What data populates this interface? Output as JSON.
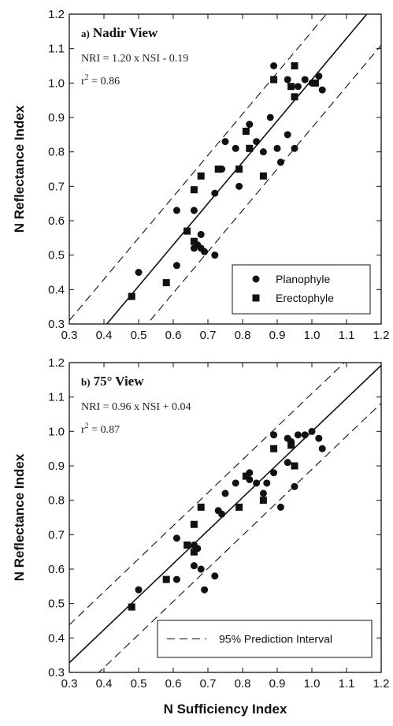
{
  "chart_data": [
    {
      "type": "scatter",
      "panel_label": "a)",
      "title": "Nadir View",
      "equation": "NRI = 1.20 x NSI - 0.19",
      "r2_label": "r",
      "r2_sup": "2",
      "r2_value": " = 0.86",
      "ylabel": "N Reflectance Index",
      "xlabel": "",
      "xlim": [
        0.3,
        1.2
      ],
      "ylim": [
        0.3,
        1.2
      ],
      "xticks": [
        "0.3",
        "0.4",
        "0.5",
        "0.6",
        "0.7",
        "0.8",
        "0.9",
        "1.0",
        "1.1",
        "1.2"
      ],
      "yticks": [
        "0.3",
        "0.4",
        "0.5",
        "0.6",
        "0.7",
        "0.8",
        "0.9",
        "1.0",
        "1.1",
        "1.2"
      ],
      "fit": {
        "slope": 1.2,
        "intercept": -0.19
      },
      "prediction_interval": {
        "offset": 0.14
      },
      "legend": {
        "position": "bottom-right",
        "entries": [
          {
            "marker": "circle",
            "label": "Planophyle"
          },
          {
            "marker": "square",
            "label": "Erectophyle"
          }
        ]
      },
      "series": [
        {
          "name": "Planophyle",
          "marker": "circle",
          "points": [
            [
              0.5,
              0.45
            ],
            [
              0.61,
              0.47
            ],
            [
              0.61,
              0.63
            ],
            [
              0.66,
              0.63
            ],
            [
              0.66,
              0.52
            ],
            [
              0.67,
              0.53
            ],
            [
              0.68,
              0.52
            ],
            [
              0.68,
              0.56
            ],
            [
              0.69,
              0.51
            ],
            [
              0.72,
              0.5
            ],
            [
              0.72,
              0.68
            ],
            [
              0.74,
              0.75
            ],
            [
              0.75,
              0.83
            ],
            [
              0.78,
              0.81
            ],
            [
              0.79,
              0.7
            ],
            [
              0.82,
              0.88
            ],
            [
              0.82,
              0.81
            ],
            [
              0.84,
              0.83
            ],
            [
              0.86,
              0.8
            ],
            [
              0.88,
              0.9
            ],
            [
              0.89,
              1.05
            ],
            [
              0.9,
              0.81
            ],
            [
              0.91,
              0.77
            ],
            [
              0.93,
              1.01
            ],
            [
              0.93,
              0.85
            ],
            [
              0.95,
              0.81
            ],
            [
              0.96,
              0.99
            ],
            [
              0.98,
              1.01
            ],
            [
              1.0,
              1.0
            ],
            [
              1.02,
              1.02
            ],
            [
              1.03,
              0.98
            ]
          ]
        },
        {
          "name": "Erectophyle",
          "marker": "square",
          "points": [
            [
              0.48,
              0.38
            ],
            [
              0.58,
              0.42
            ],
            [
              0.64,
              0.57
            ],
            [
              0.66,
              0.54
            ],
            [
              0.66,
              0.69
            ],
            [
              0.68,
              0.73
            ],
            [
              0.73,
              0.75
            ],
            [
              0.79,
              0.75
            ],
            [
              0.81,
              0.86
            ],
            [
              0.82,
              0.81
            ],
            [
              0.86,
              0.73
            ],
            [
              0.89,
              1.01
            ],
            [
              0.94,
              0.99
            ],
            [
              0.95,
              1.05
            ],
            [
              0.95,
              0.96
            ],
            [
              1.01,
              1.0
            ]
          ]
        }
      ]
    },
    {
      "type": "scatter",
      "panel_label": "b)",
      "title": "75° View",
      "equation": "NRI = 0.96 x NSI + 0.04",
      "r2_label": "r",
      "r2_sup": "2",
      "r2_value": " = 0.87",
      "ylabel": "N Reflectance Index",
      "xlabel": "N Sufficiency Index",
      "xlim": [
        0.3,
        1.2
      ],
      "ylim": [
        0.3,
        1.2
      ],
      "xticks": [
        "0.3",
        "0.4",
        "0.5",
        "0.6",
        "0.7",
        "0.8",
        "0.9",
        "1.0",
        "1.1",
        "1.2"
      ],
      "yticks": [
        "0.3",
        "0.4",
        "0.5",
        "0.6",
        "0.7",
        "0.8",
        "0.9",
        "1.0",
        "1.1",
        "1.2"
      ],
      "fit": {
        "slope": 0.96,
        "intercept": 0.04
      },
      "prediction_interval": {
        "offset": 0.11
      },
      "legend": {
        "position": "bottom-right",
        "entries": [
          {
            "marker": "dash",
            "label": "95% Prediction Interval"
          }
        ]
      },
      "series": [
        {
          "name": "Planophyle",
          "marker": "circle",
          "points": [
            [
              0.5,
              0.54
            ],
            [
              0.61,
              0.69
            ],
            [
              0.61,
              0.57
            ],
            [
              0.66,
              0.67
            ],
            [
              0.66,
              0.61
            ],
            [
              0.67,
              0.66
            ],
            [
              0.68,
              0.6
            ],
            [
              0.69,
              0.54
            ],
            [
              0.72,
              0.58
            ],
            [
              0.73,
              0.77
            ],
            [
              0.74,
              0.76
            ],
            [
              0.75,
              0.82
            ],
            [
              0.78,
              0.85
            ],
            [
              0.82,
              0.88
            ],
            [
              0.82,
              0.86
            ],
            [
              0.84,
              0.85
            ],
            [
              0.86,
              0.82
            ],
            [
              0.87,
              0.85
            ],
            [
              0.89,
              0.99
            ],
            [
              0.89,
              0.88
            ],
            [
              0.91,
              0.78
            ],
            [
              0.93,
              0.98
            ],
            [
              0.93,
              0.91
            ],
            [
              0.94,
              0.97
            ],
            [
              0.95,
              0.84
            ],
            [
              0.96,
              0.99
            ],
            [
              0.98,
              0.99
            ],
            [
              1.0,
              1.0
            ],
            [
              1.02,
              0.98
            ],
            [
              1.03,
              0.95
            ]
          ]
        },
        {
          "name": "Erectophyle",
          "marker": "square",
          "points": [
            [
              0.48,
              0.49
            ],
            [
              0.58,
              0.57
            ],
            [
              0.64,
              0.67
            ],
            [
              0.66,
              0.65
            ],
            [
              0.66,
              0.73
            ],
            [
              0.68,
              0.78
            ],
            [
              0.79,
              0.78
            ],
            [
              0.81,
              0.87
            ],
            [
              0.86,
              0.8
            ],
            [
              0.89,
              0.95
            ],
            [
              0.94,
              0.96
            ],
            [
              0.95,
              0.9
            ]
          ]
        }
      ]
    }
  ]
}
